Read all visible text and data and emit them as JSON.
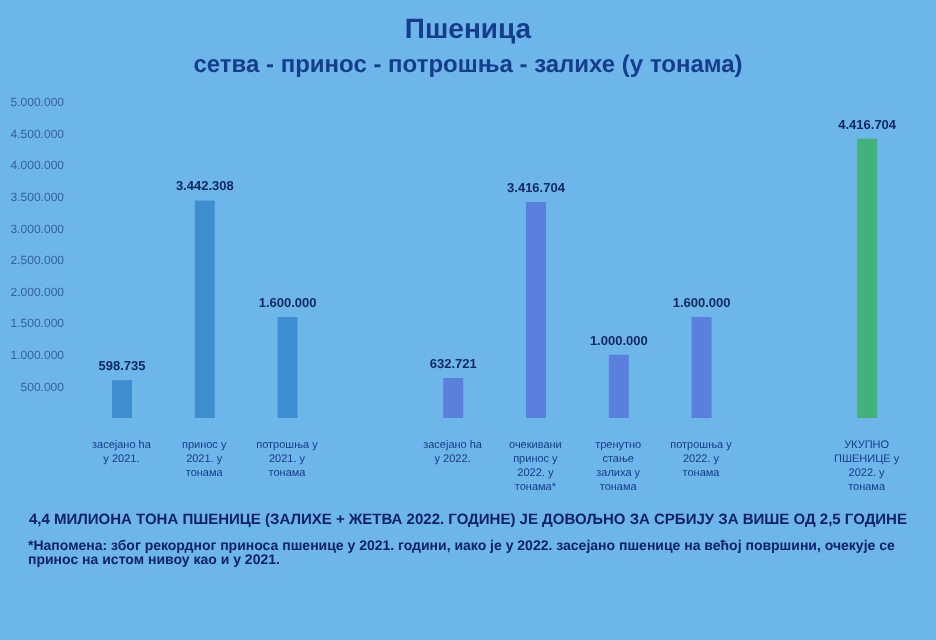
{
  "chart_data": {
    "type": "bar",
    "title": "Пшеница",
    "subtitle": "сетва - принос - потрошња - залихе (у тонама)",
    "categories": [
      "засејано ha у 2021.",
      "принос у 2021. у тонама",
      "потрошња у 2021. у тонама",
      null,
      "засејано ha у 2022.",
      "очекивани принос у 2022. у тонама*",
      "тренутно стање залиха у тонама",
      "потрошња у 2022. у тонама",
      null,
      "УКУПНО ПШЕНИЦЕ у 2022. у тонама"
    ],
    "values": [
      598735,
      3442308,
      1600000,
      null,
      632721,
      3416704,
      1000000,
      1600000,
      null,
      4416704
    ],
    "value_labels": [
      "598.735",
      "3.442.308",
      "1.600.000",
      null,
      "632.721",
      "3.416.704",
      "1.000.000",
      "1.600.000",
      null,
      "4.416.704"
    ],
    "colors": [
      "#3f8fd0",
      "#3f8fd0",
      "#3f8fd0",
      null,
      "#5b7fdc",
      "#5b7fdc",
      "#5b7fdc",
      "#5b7fdc",
      null,
      "#43b27a"
    ],
    "ylim": [
      0,
      5000000
    ],
    "yticks": [
      {
        "value": 500000,
        "label": "500.000"
      },
      {
        "value": 1000000,
        "label": "1.000.000"
      },
      {
        "value": 1500000,
        "label": "1.500.000"
      },
      {
        "value": 2000000,
        "label": "2.000.000"
      },
      {
        "value": 2500000,
        "label": "2.500.000"
      },
      {
        "value": 3000000,
        "label": "3.000.000"
      },
      {
        "value": 3500000,
        "label": "3.500.000"
      },
      {
        "value": 4000000,
        "label": "4.000.000"
      },
      {
        "value": 4500000,
        "label": "4.500.000"
      },
      {
        "value": 5000000,
        "label": "5.000.000"
      }
    ],
    "grid": false,
    "legend": false,
    "annotations": [
      "4,4 МИЛИОНА ТОНА ПШЕНИЦЕ (ЗАЛИХЕ + ЖЕТВА 2022. ГОДИНЕ) ЈЕ ДОВОЉНО ЗА СРБИЈУ ЗА ВИШЕ ОД 2,5 ГОДИНЕ",
      "*Напомена: због рекордног приноса пшенице у 2021. години, иако је у 2022. засејано пшенице на већој површини, очекује се принос на истом нивоу као и у 2021."
    ]
  }
}
